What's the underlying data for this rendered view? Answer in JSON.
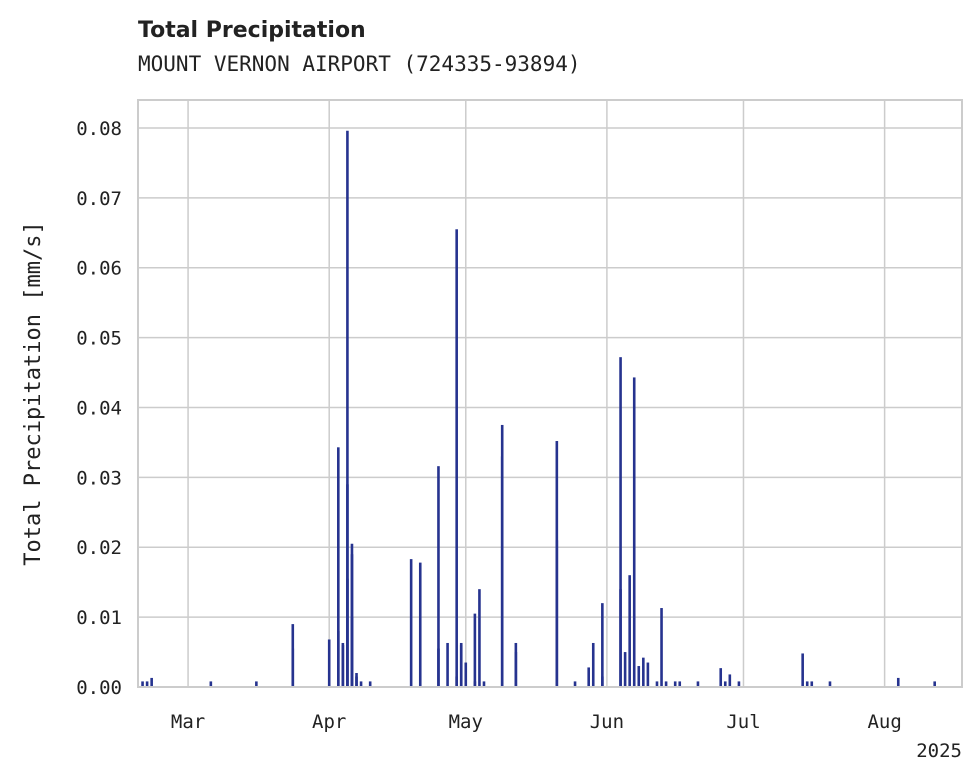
{
  "chart_data": {
    "type": "bar",
    "title": "Total Precipitation",
    "subtitle": "MOUNT VERNON AIRPORT (724335-93894)",
    "xlabel": "",
    "ylabel": "Total Precipitation [mm/s]",
    "x_tick_labels": [
      "Mar",
      "Apr",
      "May",
      "Jun",
      "Jul",
      "Aug"
    ],
    "x_tick_dates": [
      "2025-03-01",
      "2025-04-01",
      "2025-05-01",
      "2025-06-01",
      "2025-07-01",
      "2025-08-01"
    ],
    "x_year_label": "2025",
    "xlim": [
      "2025-02-18",
      "2025-08-18"
    ],
    "ylim": [
      0,
      0.084
    ],
    "y_ticks": [
      0.0,
      0.01,
      0.02,
      0.03,
      0.04,
      0.05,
      0.06,
      0.07,
      0.08
    ],
    "y_tick_labels": [
      "0.00",
      "0.01",
      "0.02",
      "0.03",
      "0.04",
      "0.05",
      "0.06",
      "0.07",
      "0.08"
    ],
    "grid": true,
    "series_color": "#26338f",
    "series": [
      {
        "x": [
          "2025-02-19",
          "2025-02-20",
          "2025-02-21",
          "2025-03-06",
          "2025-03-16",
          "2025-03-24",
          "2025-03-24",
          "2025-04-01",
          "2025-04-03",
          "2025-04-03",
          "2025-04-04",
          "2025-04-04",
          "2025-04-05",
          "2025-04-05",
          "2025-04-05",
          "2025-04-06",
          "2025-04-06",
          "2025-04-06",
          "2025-04-07",
          "2025-04-07",
          "2025-04-08",
          "2025-04-10",
          "2025-04-19",
          "2025-04-21",
          "2025-04-25",
          "2025-04-25",
          "2025-04-27",
          "2025-04-29",
          "2025-04-29",
          "2025-04-30",
          "2025-04-30",
          "2025-05-01",
          "2025-05-03",
          "2025-05-03",
          "2025-05-04",
          "2025-05-05",
          "2025-05-09",
          "2025-05-09",
          "2025-05-12",
          "2025-05-12",
          "2025-05-21",
          "2025-05-21",
          "2025-05-25",
          "2025-05-28",
          "2025-05-29",
          "2025-05-31",
          "2025-05-31",
          "2025-06-04",
          "2025-06-04",
          "2025-06-05",
          "2025-06-06",
          "2025-06-07",
          "2025-06-08",
          "2025-06-09",
          "2025-06-10",
          "2025-06-12",
          "2025-06-13",
          "2025-06-14",
          "2025-06-16",
          "2025-06-17",
          "2025-06-21",
          "2025-06-26",
          "2025-06-27",
          "2025-06-28",
          "2025-06-30",
          "2025-07-14",
          "2025-07-15",
          "2025-07-16",
          "2025-07-20",
          "2025-08-04",
          "2025-08-12"
        ],
        "values": [
          0.0008,
          0.0008,
          0.0013,
          0.0008,
          0.0008,
          0.009,
          0.0055,
          0.0068,
          0.0343,
          0.008,
          0.006,
          0.0063,
          0.0155,
          0.029,
          0.0796,
          0.0205,
          0.019,
          0.01,
          0.002,
          0.0015,
          0.0008,
          0.0008,
          0.0183,
          0.0178,
          0.0055,
          0.0316,
          0.0063,
          0.0015,
          0.0655,
          0.0063,
          0.006,
          0.0035,
          0.0008,
          0.0105,
          0.014,
          0.0008,
          0.0375,
          0.033,
          0.005,
          0.0063,
          0.0352,
          0.021,
          0.0008,
          0.0028,
          0.0063,
          0.0015,
          0.012,
          0.0472,
          0.014,
          0.005,
          0.016,
          0.0443,
          0.003,
          0.0042,
          0.0035,
          0.0008,
          0.0113,
          0.0008,
          0.0008,
          0.0008,
          0.0008,
          0.0027,
          0.0008,
          0.0018,
          0.0008,
          0.0048,
          0.0008,
          0.0008,
          0.0008,
          0.0013,
          0.0008
        ]
      }
    ]
  }
}
